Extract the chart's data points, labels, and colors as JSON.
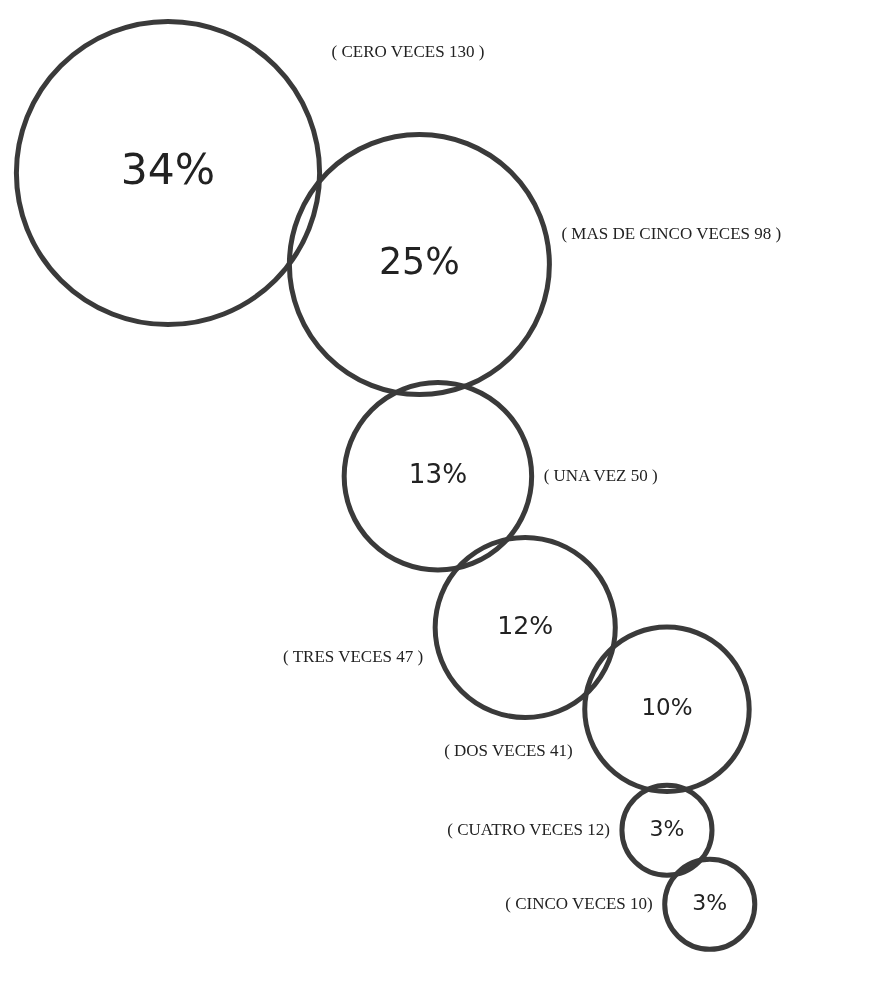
{
  "chart_data": {
    "type": "other",
    "categories": [
      "( CERO VECES 130 )",
      "( MAS DE CINCO VECES 98 )",
      "( UNA VEZ 50 )",
      "( TRES VECES 47 )",
      "( DOS VECES 41)",
      "( CUATRO VECES 12)",
      "( CINCO VECES 10)"
    ],
    "values": [
      34,
      25,
      13,
      12,
      10,
      3,
      3
    ],
    "value_labels": [
      "34%",
      "25%",
      "13%",
      "12%",
      "10%",
      "3%",
      "3%"
    ],
    "color": "#3a3a3a"
  }
}
